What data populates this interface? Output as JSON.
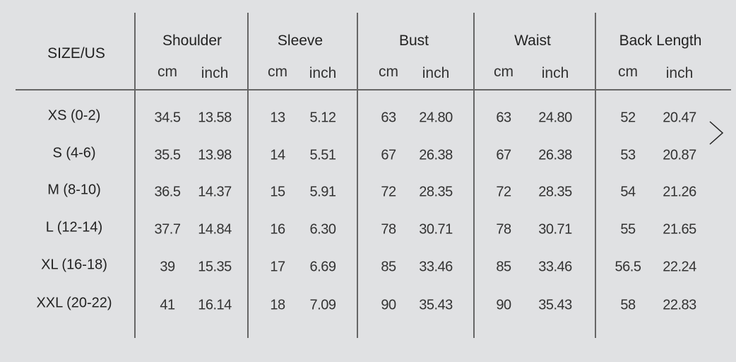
{
  "header": {
    "size_label": "SIZE/US",
    "groups": [
      "Shoulder",
      "Sleeve",
      "Bust",
      "Waist",
      "Back Length"
    ],
    "units": [
      "cm",
      "inch"
    ]
  },
  "rows": [
    {
      "size": "XS (0-2)",
      "values": [
        "34.5",
        "13.58",
        "13",
        "5.12",
        "63",
        "24.80",
        "63",
        "24.80",
        "52",
        "20.47"
      ]
    },
    {
      "size": "S (4-6)",
      "values": [
        "35.5",
        "13.98",
        "14",
        "5.51",
        "67",
        "26.38",
        "67",
        "26.38",
        "53",
        "20.87"
      ]
    },
    {
      "size": "M (8-10)",
      "values": [
        "36.5",
        "14.37",
        "15",
        "5.91",
        "72",
        "28.35",
        "72",
        "28.35",
        "54",
        "21.26"
      ]
    },
    {
      "size": "L (12-14)",
      "values": [
        "37.7",
        "14.84",
        "16",
        "6.30",
        "78",
        "30.71",
        "78",
        "30.71",
        "55",
        "21.65"
      ]
    },
    {
      "size": "XL (16-18)",
      "values": [
        "39",
        "15.35",
        "17",
        "6.69",
        "85",
        "33.46",
        "85",
        "33.46",
        "56.5",
        "22.24"
      ]
    },
    {
      "size": "XXL (20-22)",
      "values": [
        "41",
        "16.14",
        "18",
        "7.09",
        "90",
        "35.43",
        "90",
        "35.43",
        "58",
        "22.83"
      ]
    }
  ],
  "icons": {
    "next": "chevron-right-icon"
  },
  "colors": {
    "background": "#e0e1e3",
    "lines": "#666666",
    "text": "#222222"
  }
}
